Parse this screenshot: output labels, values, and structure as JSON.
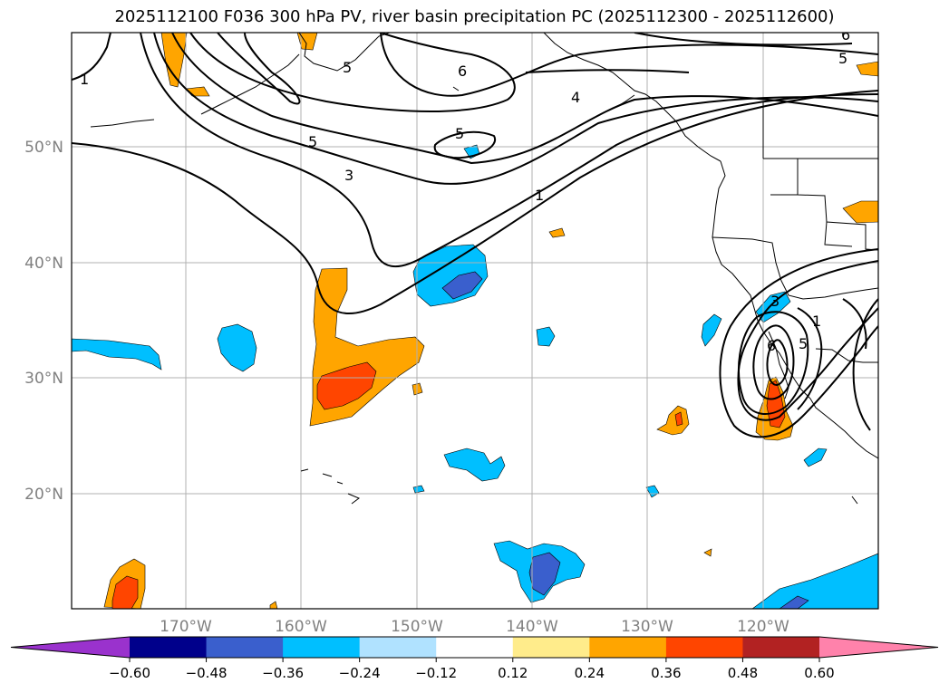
{
  "title": "2025112100 F036 300 hPa PV, river basin precipitation PC (2025112300 - 2025112600)",
  "lat_labels": [
    "50°N",
    "40°N",
    "30°N",
    "20°N"
  ],
  "lon_labels": [
    "170°W",
    "160°W",
    "150°W",
    "140°W",
    "130°W",
    "120°W"
  ],
  "contour_labels": [
    "1",
    "6",
    "4",
    "5",
    "5",
    "5",
    "3",
    "1",
    "5",
    "3",
    "6",
    "5",
    "1",
    "6"
  ],
  "colorbar": {
    "ticks": [
      "−0.60",
      "−0.48",
      "−0.36",
      "−0.24",
      "−0.12",
      "0.12",
      "0.24",
      "0.36",
      "0.48",
      "0.60"
    ],
    "colors": [
      "#9a32cd",
      "#00008b",
      "#3a5fcd",
      "#00bfff",
      "#b0e2ff",
      "#ffffff",
      "#ffec8b",
      "#ffa500",
      "#ff4500",
      "#b22222",
      "#ff82ab"
    ]
  },
  "colors": {
    "pos_024": "#ffa500",
    "pos_036": "#ff4500",
    "neg_024": "#00bfff",
    "neg_036": "#3a5fcd",
    "grid": "#b0b0b0"
  }
}
